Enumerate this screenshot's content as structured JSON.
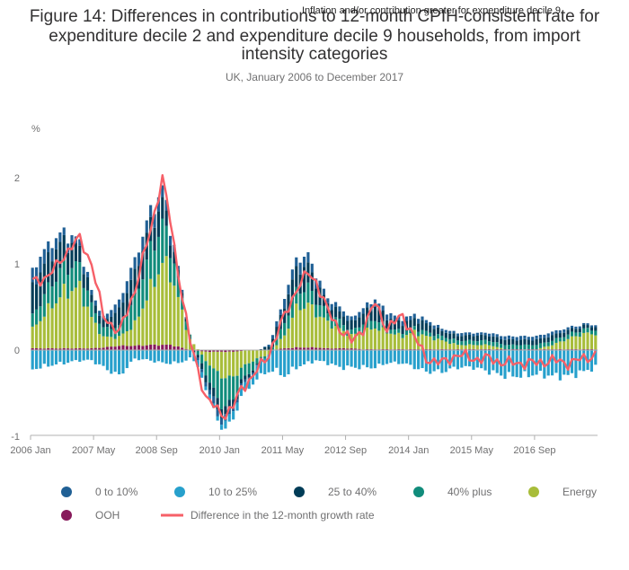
{
  "chart_data": {
    "type": "bar",
    "title_lines": [
      "Figure 14: Differences in contributions to 12-month CPIH-consistent rate for",
      "expenditure decile 2 and expenditure decile 9 households, from import",
      "intensity categories"
    ],
    "subtitle": "UK, January 2006 to December 2017",
    "annotation": "Inflation and/or contribution greater for expenditure decile 9",
    "ylabel": "%",
    "ylim": [
      -1,
      2.1
    ],
    "y_ticks": [
      -1,
      0,
      1,
      2
    ],
    "x_tick_labels": [
      "2006 Jan",
      "2007 May",
      "2008 Sep",
      "2010 Jan",
      "2011 May",
      "2012 Sep",
      "2014 Jan",
      "2015 May",
      "2016 Sep"
    ],
    "x_tick_month_index": [
      0,
      16,
      32,
      48,
      64,
      80,
      96,
      112,
      128
    ],
    "months": 144,
    "stacked": true,
    "grid": false,
    "legend_position": "bottom",
    "colors": {
      "0 to 10%": "#206095",
      "10 to 25%": "#27a0cc",
      "25 to 40%": "#003c57",
      "40% plus": "#118c7b",
      "Energy": "#a8bd3a",
      "OOH": "#871a5b",
      "Difference in the 12-month growth rate": "#f66068"
    },
    "legend": [
      {
        "label": "0 to 10%",
        "kind": "dot",
        "color": "#206095"
      },
      {
        "label": "10 to 25%",
        "kind": "dot",
        "color": "#27a0cc"
      },
      {
        "label": "25 to 40%",
        "kind": "dot",
        "color": "#003c57"
      },
      {
        "label": "40% plus",
        "kind": "dot",
        "color": "#118c7b"
      },
      {
        "label": "Energy",
        "kind": "dot",
        "color": "#a8bd3a"
      },
      {
        "label": "OOH",
        "kind": "dot",
        "color": "#871a5b"
      },
      {
        "label": "Difference in the 12-month growth rate",
        "kind": "line",
        "color": "#f66068"
      }
    ],
    "anchors": {
      "note": "Approximate stacked components read from the chart at key months (index 0 = Jan 2006); intermediate months are linearly interpolated.",
      "idx": [
        0,
        4,
        8,
        12,
        15,
        18,
        22,
        26,
        30,
        33,
        35,
        37,
        40,
        44,
        47,
        49,
        51,
        53,
        56,
        60,
        64,
        67,
        70,
        72,
        75,
        78,
        81,
        84,
        87,
        90,
        94,
        97,
        100,
        104,
        108,
        112,
        116,
        120,
        124,
        128,
        132,
        136,
        140,
        143
      ],
      "energy": [
        0.22,
        0.45,
        0.65,
        0.7,
        0.35,
        0.12,
        0.1,
        0.25,
        0.65,
        0.95,
        0.85,
        0.55,
        0.12,
        -0.1,
        -0.25,
        -0.3,
        -0.3,
        -0.2,
        -0.12,
        -0.05,
        0.15,
        0.45,
        0.5,
        0.4,
        0.3,
        0.22,
        0.15,
        0.2,
        0.25,
        0.2,
        0.15,
        0.2,
        0.15,
        0.1,
        0.05,
        0.05,
        0.05,
        0.0,
        0.0,
        0.0,
        0.05,
        0.12,
        0.18,
        0.18
      ],
      "ooh": [
        0.02,
        0.02,
        0.02,
        0.02,
        0.02,
        0.03,
        0.05,
        0.05,
        0.06,
        0.06,
        0.06,
        0.04,
        0.0,
        -0.02,
        -0.02,
        -0.02,
        -0.02,
        -0.01,
        0.0,
        0.0,
        0.02,
        0.03,
        0.03,
        0.03,
        0.02,
        0.02,
        0.02,
        0.01,
        0.01,
        0.01,
        0.01,
        0.01,
        0.01,
        0.01,
        0.01,
        0.01,
        0.01,
        0.01,
        0.01,
        0.01,
        0.01,
        0.01,
        0.01,
        0.01
      ],
      "forty_plus": [
        0.15,
        0.25,
        0.3,
        0.25,
        0.15,
        0.1,
        0.12,
        0.3,
        0.45,
        0.45,
        0.3,
        0.2,
        0.05,
        -0.15,
        -0.3,
        -0.35,
        -0.25,
        -0.15,
        -0.1,
        0.0,
        0.15,
        0.2,
        0.2,
        0.15,
        0.1,
        0.1,
        0.05,
        0.1,
        0.1,
        0.05,
        0.05,
        0.05,
        0.05,
        0.05,
        0.05,
        0.05,
        0.05,
        0.05,
        0.05,
        0.05,
        0.05,
        0.05,
        0.05,
        0.05
      ],
      "twentyfive_forty": [
        0.35,
        0.35,
        0.3,
        0.2,
        0.1,
        0.08,
        0.2,
        0.3,
        0.3,
        0.25,
        0.15,
        0.1,
        0.0,
        -0.08,
        -0.12,
        -0.1,
        -0.08,
        -0.05,
        -0.03,
        0.05,
        0.2,
        0.25,
        0.25,
        0.2,
        0.12,
        0.1,
        0.1,
        0.12,
        0.15,
        0.12,
        0.1,
        0.1,
        0.1,
        0.06,
        0.06,
        0.06,
        0.06,
        0.06,
        0.06,
        0.06,
        0.06,
        0.05,
        0.04,
        0.04
      ],
      "zero_ten": [
        0.2,
        0.15,
        0.1,
        0.08,
        0.06,
        0.05,
        0.1,
        0.15,
        0.15,
        0.15,
        0.1,
        0.05,
        0.0,
        -0.05,
        -0.08,
        -0.08,
        -0.05,
        -0.03,
        -0.02,
        0.02,
        0.1,
        0.12,
        0.12,
        0.1,
        0.06,
        0.06,
        0.05,
        0.06,
        0.08,
        0.06,
        0.05,
        0.05,
        0.04,
        0.03,
        0.03,
        0.03,
        0.03,
        0.04,
        0.04,
        0.04,
        0.04,
        0.03,
        0.02,
        0.02
      ],
      "ten_twentyfive": [
        -0.22,
        -0.18,
        -0.15,
        -0.12,
        -0.12,
        -0.2,
        -0.3,
        -0.1,
        -0.12,
        -0.15,
        -0.15,
        -0.15,
        -0.1,
        -0.05,
        -0.05,
        -0.08,
        -0.1,
        -0.1,
        -0.12,
        -0.2,
        -0.3,
        -0.2,
        -0.15,
        -0.12,
        -0.15,
        -0.2,
        -0.2,
        -0.2,
        -0.2,
        -0.15,
        -0.15,
        -0.2,
        -0.25,
        -0.25,
        -0.2,
        -0.2,
        -0.25,
        -0.3,
        -0.3,
        -0.28,
        -0.3,
        -0.3,
        -0.25,
        -0.2
      ],
      "line": [
        0.8,
        0.85,
        1.1,
        1.3,
        1.0,
        0.4,
        0.2,
        0.7,
        1.4,
        2.0,
        1.5,
        0.9,
        0.1,
        -0.55,
        -0.7,
        -0.75,
        -0.65,
        -0.45,
        -0.3,
        -0.05,
        0.4,
        0.7,
        0.9,
        0.8,
        0.45,
        0.25,
        0.1,
        0.25,
        0.55,
        0.25,
        0.4,
        0.15,
        -0.1,
        -0.15,
        -0.05,
        -0.1,
        -0.1,
        -0.15,
        -0.15,
        -0.15,
        -0.12,
        -0.15,
        -0.1,
        -0.05
      ]
    }
  }
}
